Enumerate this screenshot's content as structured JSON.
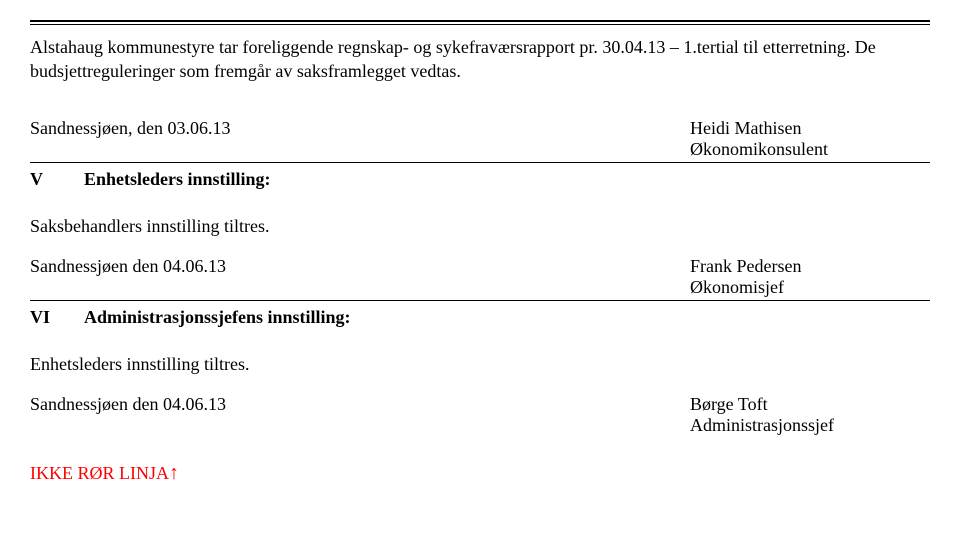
{
  "topRule": true,
  "para1": "Alstahaug kommunestyre tar foreliggende regnskap- og sykefraværsrapport pr. 30.04.13 – 1.tertial til etterretning. De budsjettreguleringer som fremgår av saksframlegget vedtas.",
  "block1": {
    "leftDate": "Sandnessjøen, den 03.06.13",
    "rightName": "Heidi Mathisen",
    "rightTitle": "Økonomikonsulent"
  },
  "section1": {
    "roman": "V",
    "title": "Enhetsleders innstilling:"
  },
  "midStatement1": "Saksbehandlers innstilling tiltres.",
  "block2": {
    "leftDate": "Sandnessjøen den 04.06.13",
    "rightName": "Frank Pedersen",
    "rightTitle": "Økonomisjef"
  },
  "section2": {
    "roman": "VI",
    "title": "Administrasjonssjefens innstilling:"
  },
  "midStatement2": "Enhetsleders innstilling tiltres.",
  "block3": {
    "leftDate": "Sandnessjøen den 04.06.13",
    "rightName": "Børge Toft",
    "rightTitle": "Administrasjonssjef"
  },
  "footerRed": "IKKE RØR LINJA",
  "footerArrow": "↑"
}
